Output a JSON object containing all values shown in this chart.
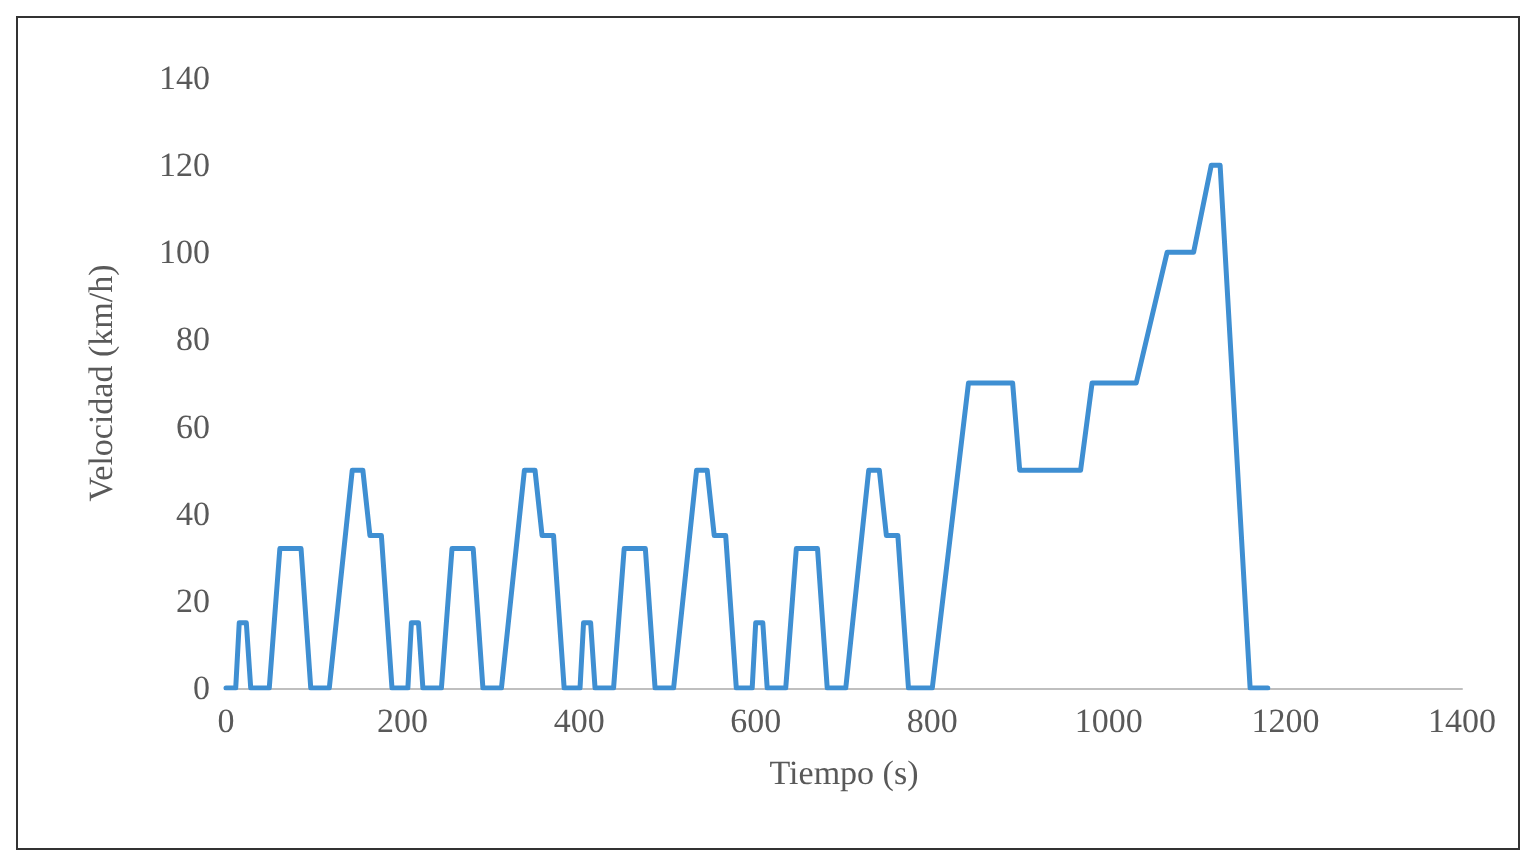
{
  "chart_data": {
    "type": "line",
    "xlabel": "Tiempo (s)",
    "ylabel": "Velocidad (km/h)",
    "x": [
      0,
      11,
      15,
      23,
      28,
      49,
      61,
      85,
      96,
      117,
      143,
      155,
      163,
      176,
      188,
      195,
      206,
      210,
      218,
      223,
      244,
      256,
      280,
      291,
      312,
      338,
      350,
      358,
      371,
      383,
      390,
      401,
      405,
      413,
      418,
      439,
      451,
      475,
      486,
      507,
      533,
      545,
      553,
      566,
      578,
      585,
      596,
      600,
      608,
      613,
      634,
      646,
      670,
      681,
      702,
      728,
      740,
      748,
      761,
      773,
      780,
      800,
      841,
      891,
      899,
      968,
      981,
      1031,
      1066,
      1096,
      1116,
      1126,
      1160,
      1180
    ],
    "series": [
      {
        "color": "#3f8fd2",
        "values": [
          0,
          0,
          15,
          15,
          0,
          0,
          32,
          32,
          0,
          0,
          50,
          50,
          35,
          35,
          0,
          0,
          0,
          15,
          15,
          0,
          0,
          32,
          32,
          0,
          0,
          50,
          50,
          35,
          35,
          0,
          0,
          0,
          15,
          15,
          0,
          0,
          32,
          32,
          0,
          0,
          50,
          50,
          35,
          35,
          0,
          0,
          0,
          15,
          15,
          0,
          0,
          32,
          32,
          0,
          0,
          50,
          50,
          35,
          35,
          0,
          0,
          0,
          70,
          70,
          50,
          50,
          70,
          70,
          100,
          100,
          120,
          120,
          0,
          0
        ]
      }
    ],
    "xlim": [
      0,
      1400
    ],
    "xticks": [
      0,
      200,
      400,
      600,
      800,
      1000,
      1200,
      1400
    ],
    "ylim": [
      0,
      140
    ],
    "yticks": [
      0,
      20,
      40,
      60,
      80,
      100,
      120,
      140
    ],
    "grid": false,
    "marker": "none",
    "line_style": "solid"
  }
}
